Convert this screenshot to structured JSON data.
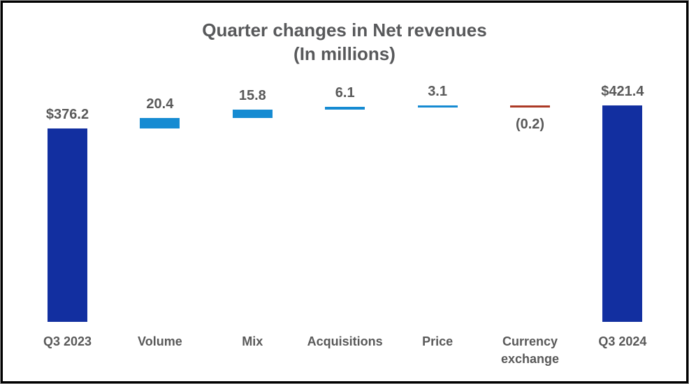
{
  "chart_data": {
    "type": "waterfall",
    "title": "Quarter changes in Net revenues",
    "subtitle": "(In millions)",
    "categories": [
      "Q3 2023",
      "Volume",
      "Mix",
      "Acquisitions",
      "Price",
      "Currency exchange",
      "Q3 2024"
    ],
    "bars": [
      {
        "label": "Q3 2023",
        "value": 376.2,
        "display": "$376.2",
        "role": "total"
      },
      {
        "label": "Volume",
        "value": 20.4,
        "display": "20.4",
        "role": "increase"
      },
      {
        "label": "Mix",
        "value": 15.8,
        "display": "15.8",
        "role": "increase"
      },
      {
        "label": "Acquisitions",
        "value": 6.1,
        "display": "6.1",
        "role": "increase"
      },
      {
        "label": "Price",
        "value": 3.1,
        "display": "3.1",
        "role": "increase"
      },
      {
        "label": "Currency exchange",
        "value": -0.2,
        "display": "(0.2)",
        "role": "decrease"
      },
      {
        "label": "Q3 2024",
        "value": 421.4,
        "display": "$421.4",
        "role": "total"
      }
    ],
    "colors": {
      "total": "#122FA0",
      "increase": "#168BD2",
      "decrease": "#AC3A25",
      "label_text": "#595959",
      "title_text": "#58595B"
    },
    "axes": {
      "visible": false,
      "gridlines": false
    },
    "legend": {
      "visible": false
    },
    "ylim": [
      0,
      440
    ]
  }
}
